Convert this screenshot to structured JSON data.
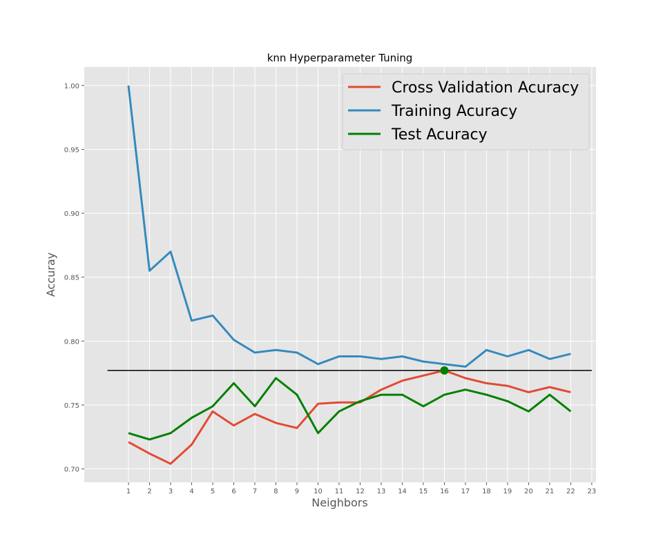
{
  "chart_data": {
    "type": "line",
    "title": "knn Hyperparameter Tuning",
    "xlabel": "Neighbors",
    "ylabel": "Accuray",
    "x": [
      1,
      2,
      3,
      4,
      5,
      6,
      7,
      8,
      9,
      10,
      11,
      12,
      13,
      14,
      15,
      16,
      17,
      18,
      19,
      20,
      21,
      22
    ],
    "xticks": [
      1,
      2,
      3,
      4,
      5,
      6,
      7,
      8,
      9,
      10,
      11,
      12,
      13,
      14,
      15,
      16,
      17,
      18,
      19,
      20,
      21,
      22,
      23
    ],
    "xlim": [
      -1.1,
      23.2
    ],
    "yticks": [
      0.7,
      0.75,
      0.8,
      0.85,
      0.9,
      0.95,
      1.0
    ],
    "ylim": [
      0.6895,
      1.0145
    ],
    "grid": true,
    "legend_position": "top-right",
    "series": [
      {
        "name": "Cross Validation Acuracy",
        "color": "#e24a33",
        "values": [
          0.721,
          0.712,
          0.704,
          0.719,
          0.745,
          0.734,
          0.743,
          0.736,
          0.732,
          0.751,
          0.752,
          0.752,
          0.762,
          0.769,
          0.773,
          0.777,
          0.771,
          0.767,
          0.765,
          0.76,
          0.764,
          0.76
        ]
      },
      {
        "name": "Training Acuracy",
        "color": "#348abd",
        "values": [
          1.0,
          0.855,
          0.87,
          0.816,
          0.82,
          0.801,
          0.791,
          0.793,
          0.791,
          0.782,
          0.788,
          0.788,
          0.786,
          0.788,
          0.784,
          0.782,
          0.78,
          0.793,
          0.788,
          0.793,
          0.786,
          0.79
        ]
      },
      {
        "name": "Test Acuracy",
        "color": "#008000",
        "values": [
          0.728,
          0.723,
          0.728,
          0.74,
          0.749,
          0.767,
          0.749,
          0.771,
          0.758,
          0.728,
          0.745,
          0.753,
          0.758,
          0.758,
          0.749,
          0.758,
          0.762,
          0.758,
          0.753,
          0.745,
          0.758,
          0.745
        ]
      }
    ],
    "reference_line": {
      "y": 0.777,
      "x_start": 0,
      "x_end": 23,
      "color": "#000000"
    },
    "best_point": {
      "x": 16,
      "y": 0.777,
      "color": "#008000"
    }
  }
}
